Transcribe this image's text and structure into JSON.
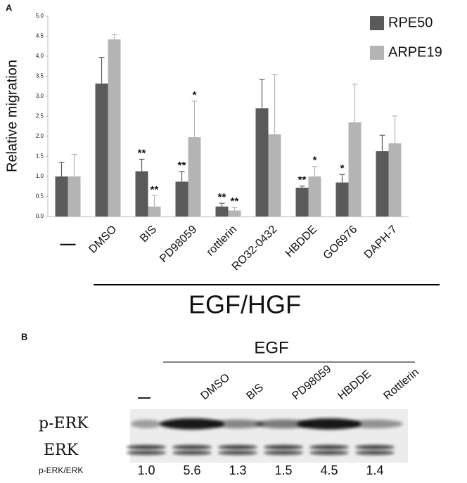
{
  "chart_data": {
    "type": "bar",
    "panel": "A",
    "ylabel": "Relative migration",
    "group_label": "EGF/HGF",
    "categories": [
      "—",
      "DMSO",
      "BIS",
      "PD98059",
      "rottlerin",
      "RO32-0432",
      "HBDDE",
      "GO6976",
      "DAPH-7"
    ],
    "series": [
      {
        "name": "RPE50",
        "color": "#5a5a5a",
        "values": [
          1.0,
          3.32,
          1.13,
          0.87,
          0.25,
          2.7,
          0.72,
          0.85,
          1.63
        ],
        "errors": [
          0.35,
          0.65,
          0.3,
          0.25,
          0.08,
          0.72,
          0.04,
          0.2,
          0.4
        ],
        "annotations": [
          null,
          null,
          "**",
          "**",
          "**",
          null,
          "**",
          "*",
          null
        ]
      },
      {
        "name": "ARPE19",
        "color": "#b4b4b4",
        "values": [
          1.0,
          4.42,
          0.25,
          1.98,
          0.15,
          2.05,
          1.0,
          2.35,
          1.83
        ],
        "errors": [
          0.55,
          0.12,
          0.27,
          0.9,
          0.08,
          1.5,
          0.25,
          0.95,
          0.68
        ],
        "annotations": [
          null,
          null,
          "**",
          "*",
          "**",
          null,
          "*",
          null,
          null
        ]
      }
    ],
    "ylim": [
      0,
      5
    ],
    "yticks": [
      {
        "value": 0,
        "label": "0.0"
      },
      {
        "value": 0.5,
        "label": "0.5"
      },
      {
        "value": 1,
        "label": "1.0"
      },
      {
        "value": 1.5,
        "label": "1.5"
      },
      {
        "value": 2,
        "label": "2.0"
      },
      {
        "value": 2.5,
        "label": "2.5"
      },
      {
        "value": 3,
        "label": "3.0"
      },
      {
        "value": 3.5,
        "label": "3.5"
      },
      {
        "value": 4,
        "label": "4.0"
      },
      {
        "value": 4.5,
        "label": "4.5"
      },
      {
        "value": 5,
        "label": "5.0"
      }
    ],
    "grid": false
  },
  "blot": {
    "panel": "B",
    "treatment": "EGF",
    "lanes": [
      "—",
      "DMSO",
      "BIS",
      "PD98059",
      "HBDDE",
      "Rottlerin"
    ],
    "rows": [
      "p-ERK",
      "ERK"
    ],
    "ratio_label": "p-ERK/ERK",
    "ratios": [
      "1.0",
      "5.6",
      "1.3",
      "1.5",
      "4.5",
      "1.4"
    ]
  }
}
